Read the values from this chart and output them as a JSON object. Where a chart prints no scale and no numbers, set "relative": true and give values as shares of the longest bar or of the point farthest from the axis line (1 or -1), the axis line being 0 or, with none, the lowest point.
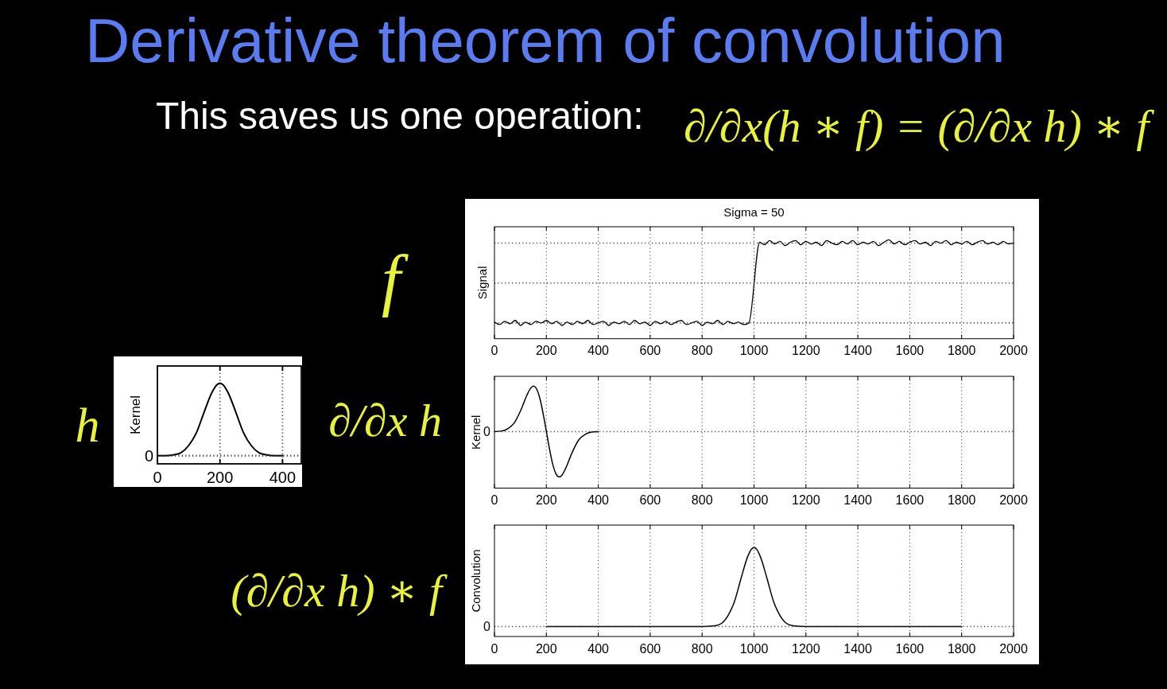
{
  "chart_data": [
    {
      "type": "other",
      "title": "Derivative theorem of convolution",
      "subtitle": "This saves us one operation:",
      "annotations": [
        "∂/∂x(h ∗ f) = (∂/∂x h) ∗ f"
      ]
    },
    {
      "type": "line",
      "title": "Sigma = 50",
      "ylabel": "Signal",
      "annotations": [
        "f"
      ],
      "relative": true,
      "grid": "x",
      "xlim": [
        0,
        2000
      ],
      "xticks": [
        0,
        200,
        400,
        600,
        800,
        1000,
        1200,
        1400,
        1600,
        1800,
        2000
      ],
      "ref_lines": [
        {
          "axis": "y",
          "value": 0,
          "line_style": "dotted",
          "color": "#444444"
        },
        {
          "axis": "y",
          "value": 0.48,
          "line_style": "dotted",
          "color": "#444444"
        },
        {
          "axis": "y",
          "value": 0.96,
          "line_style": "dotted",
          "color": "#444444"
        }
      ],
      "x": [
        0,
        20,
        40,
        60,
        80,
        100,
        120,
        140,
        160,
        180,
        200,
        220,
        240,
        260,
        280,
        300,
        320,
        340,
        360,
        380,
        400,
        420,
        440,
        460,
        480,
        500,
        520,
        540,
        560,
        580,
        600,
        620,
        640,
        660,
        680,
        700,
        720,
        740,
        760,
        780,
        800,
        820,
        840,
        860,
        880,
        900,
        920,
        940,
        960,
        980,
        1022,
        1040,
        1060,
        1080,
        1100,
        1120,
        1140,
        1160,
        1180,
        1200,
        1220,
        1240,
        1260,
        1280,
        1300,
        1320,
        1340,
        1360,
        1380,
        1400,
        1420,
        1440,
        1460,
        1480,
        1500,
        1520,
        1540,
        1560,
        1580,
        1600,
        1620,
        1640,
        1660,
        1680,
        1700,
        1720,
        1740,
        1760,
        1780,
        1800,
        1820,
        1840,
        1860,
        1880,
        1900,
        1920,
        1940,
        1960,
        1980,
        2000
      ],
      "series": [
        {
          "color": "#000000",
          "values": [
            0.01,
            -0.02,
            0.02,
            -0.01,
            0.03,
            -0.03,
            0.01,
            -0.02,
            0.02,
            0,
            0.03,
            -0.01,
            0.02,
            -0.03,
            0.01,
            -0.02,
            0.02,
            -0.01,
            0.03,
            -0.02,
            0,
            0.02,
            -0.03,
            0.01,
            -0.01,
            0.02,
            -0.02,
            0.03,
            -0.01,
            0.01,
            -0.03,
            0.02,
            -0.01,
            0.02,
            -0.02,
            0.01,
            0.03,
            -0.02,
            0,
            0.02,
            -0.03,
            0.01,
            -0.01,
            0.03,
            -0.02,
            0.02,
            -0.01,
            0.01,
            -0.02,
            0,
            0.97,
            0.94,
            0.99,
            0.95,
            0.98,
            0.93,
            0.97,
            0.99,
            0.94,
            0.98,
            0.95,
            0.97,
            0.93,
            0.99,
            0.96,
            0.94,
            0.98,
            0.95,
            0.99,
            0.94,
            0.97,
            0.95,
            0.98,
            0.93,
            0.97,
            1,
            0.95,
            0.98,
            0.94,
            0.97,
            0.99,
            0.95,
            0.97,
            0.93,
            0.98,
            0.96,
            0.99,
            0.94,
            0.97,
            0.95,
            0.98,
            0.94,
            0.97,
            0.99,
            0.95,
            0.97,
            0.94,
            0.98,
            0.95,
            0.96
          ]
        }
      ]
    },
    {
      "type": "line",
      "ylabel": "Kernel",
      "annotations": [
        "h"
      ],
      "relative": true,
      "grid": "x",
      "xlim": [
        0,
        460
      ],
      "xticks": [
        0,
        200,
        400
      ],
      "ref_lines": [
        {
          "axis": "y",
          "value": 0,
          "label": "0",
          "line_style": "dotted",
          "color": "#444444"
        }
      ],
      "x": [
        0,
        25,
        50,
        75,
        100,
        125,
        150,
        175,
        190,
        200,
        210,
        225,
        250,
        275,
        300,
        325,
        350,
        375,
        400
      ],
      "series": [
        {
          "color": "#000000",
          "values": [
            0,
            0,
            0.01,
            0.04,
            0.14,
            0.32,
            0.61,
            0.88,
            0.98,
            1,
            0.98,
            0.88,
            0.61,
            0.32,
            0.14,
            0.04,
            0.01,
            0,
            0
          ]
        }
      ]
    },
    {
      "type": "line",
      "ylabel": "Kernel",
      "annotations": [
        "∂/∂x h"
      ],
      "relative": true,
      "grid": "x",
      "xlim": [
        0,
        2000
      ],
      "xticks": [
        0,
        200,
        400,
        600,
        800,
        1000,
        1200,
        1400,
        1600,
        1800,
        2000
      ],
      "ref_lines": [
        {
          "axis": "y",
          "value": 0,
          "label": "0",
          "line_style": "dotted",
          "color": "#444444"
        }
      ],
      "x": [
        0,
        25,
        50,
        75,
        100,
        125,
        140,
        150,
        160,
        175,
        190,
        200,
        210,
        225,
        240,
        250,
        260,
        275,
        300,
        325,
        350,
        375,
        400
      ],
      "series": [
        {
          "color": "#000000",
          "values": [
            0,
            0.01,
            0.06,
            0.18,
            0.45,
            0.8,
            0.96,
            1,
            0.96,
            0.73,
            0.32,
            0,
            -0.32,
            -0.73,
            -0.96,
            -1,
            -0.96,
            -0.8,
            -0.45,
            -0.18,
            -0.06,
            -0.01,
            0
          ]
        }
      ]
    },
    {
      "type": "line",
      "ylabel": "Convolution",
      "annotations": [
        "(∂/∂x h) ∗ f"
      ],
      "relative": true,
      "grid": "x",
      "xlim": [
        0,
        2000
      ],
      "xticks": [
        0,
        200,
        400,
        600,
        800,
        1000,
        1200,
        1400,
        1600,
        1800,
        2000
      ],
      "ref_lines": [
        {
          "axis": "y",
          "value": 0,
          "label": "0",
          "line_style": "dotted",
          "color": "#444444"
        }
      ],
      "x": [
        200,
        400,
        600,
        800,
        850,
        875,
        900,
        925,
        950,
        975,
        990,
        1000,
        1010,
        1025,
        1050,
        1075,
        1100,
        1125,
        1150,
        1200,
        1400,
        1600,
        1800
      ],
      "series": [
        {
          "color": "#000000",
          "values": [
            0,
            0,
            0,
            0,
            0.01,
            0.04,
            0.14,
            0.32,
            0.61,
            0.88,
            0.98,
            1,
            0.98,
            0.88,
            0.61,
            0.32,
            0.14,
            0.04,
            0.01,
            0,
            0,
            0,
            0
          ]
        }
      ]
    }
  ]
}
